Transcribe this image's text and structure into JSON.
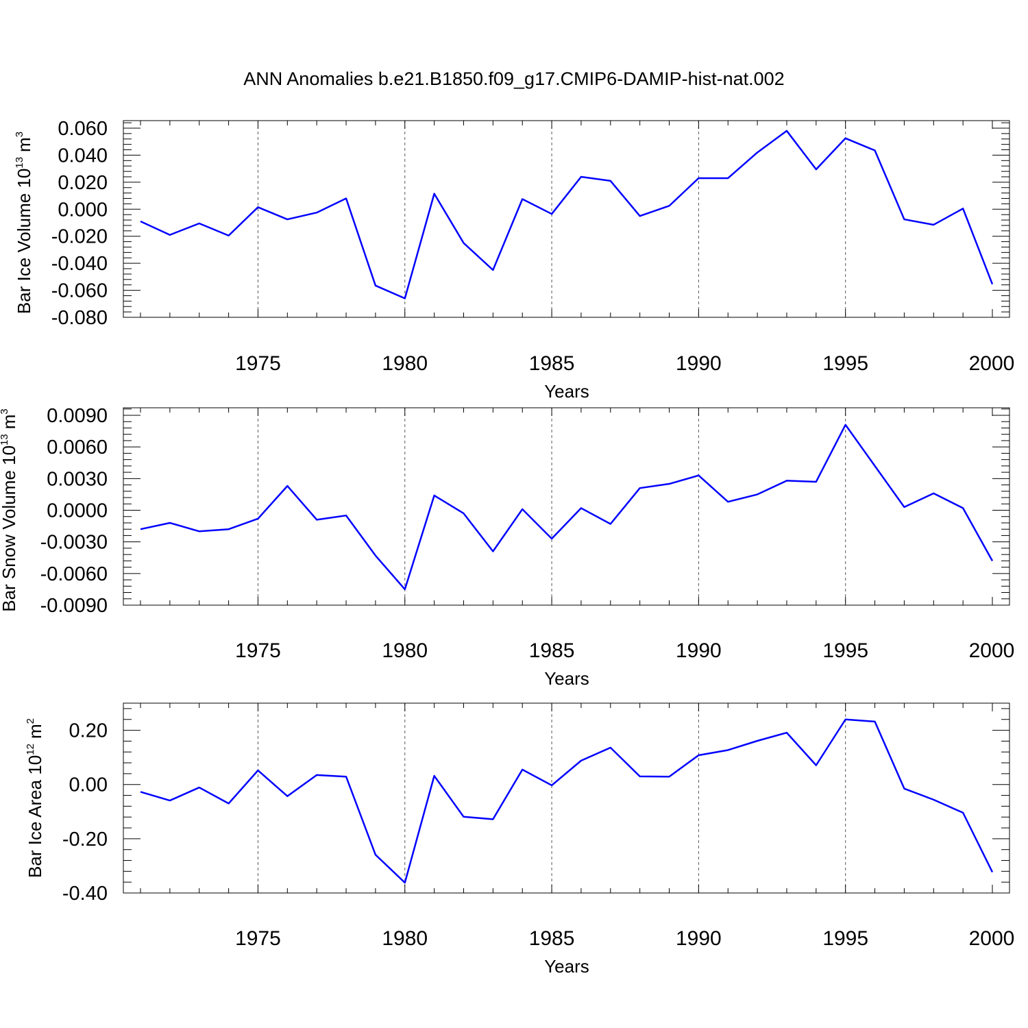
{
  "title": "ANN Anomalies b.e21.B1850.f09_g17.CMIP6-DAMIP-hist-nat.002",
  "colors": {
    "series": "#0000ff",
    "frame": "#000000",
    "grid": "#555555"
  },
  "chart_data": [
    {
      "type": "line",
      "ylabel_main": "Bar Ice Volume 10",
      "ylabel_exp": "13",
      "ylabel_unit": "m",
      "ylabel_unit_exp": "3",
      "xlabel": "Years",
      "xlim": [
        1971,
        2000
      ],
      "ylim": [
        -0.08,
        0.06
      ],
      "ytick_values": [
        0.06,
        0.04,
        0.02,
        0.0,
        -0.02,
        -0.04,
        -0.06,
        -0.08
      ],
      "ytick_labels": [
        "0.060",
        "0.040",
        "0.020",
        "0.000",
        "-0.020",
        "-0.040",
        "-0.060",
        "-0.080"
      ],
      "xtick_values": [
        1975,
        1980,
        1985,
        1990,
        1995,
        2000
      ],
      "xtick_labels": [
        "1975",
        "1980",
        "1985",
        "1990",
        "1995",
        "2000"
      ],
      "grid_x": [
        1975,
        1980,
        1985,
        1990,
        1995
      ],
      "x": [
        1971,
        1972,
        1973,
        1974,
        1975,
        1976,
        1977,
        1978,
        1979,
        1980,
        1981,
        1982,
        1983,
        1984,
        1985,
        1986,
        1987,
        1988,
        1989,
        1990,
        1991,
        1992,
        1993,
        1994,
        1995,
        1996,
        1997,
        1998,
        1999,
        2000
      ],
      "y": [
        -0.009,
        -0.019,
        -0.0105,
        -0.0195,
        0.0015,
        -0.0075,
        -0.0025,
        0.008,
        -0.0565,
        -0.066,
        0.0115,
        -0.025,
        -0.045,
        0.0075,
        -0.0035,
        0.024,
        0.021,
        -0.005,
        0.0025,
        0.023,
        0.023,
        0.042,
        0.058,
        0.0295,
        0.0525,
        0.0435,
        -0.0075,
        -0.0115,
        0.0005,
        -0.0555
      ]
    },
    {
      "type": "line",
      "ylabel_main": "Bar Snow Volume 10",
      "ylabel_exp": "13",
      "ylabel_unit": "m",
      "ylabel_unit_exp": "3",
      "xlabel": "Years",
      "xlim": [
        1971,
        2000
      ],
      "ylim": [
        -0.009,
        0.009
      ],
      "ytick_values": [
        0.009,
        0.006,
        0.003,
        0.0,
        -0.003,
        -0.006,
        -0.009
      ],
      "ytick_labels": [
        "0.0090",
        "0.0060",
        "0.0030",
        "0.0000",
        "-0.0030",
        "-0.0060",
        "-0.0090"
      ],
      "xtick_values": [
        1975,
        1980,
        1985,
        1990,
        1995,
        2000
      ],
      "xtick_labels": [
        "1975",
        "1980",
        "1985",
        "1990",
        "1995",
        "2000"
      ],
      "grid_x": [
        1975,
        1980,
        1985,
        1990,
        1995
      ],
      "x": [
        1971,
        1972,
        1973,
        1974,
        1975,
        1976,
        1977,
        1978,
        1979,
        1980,
        1981,
        1982,
        1983,
        1984,
        1985,
        1986,
        1987,
        1988,
        1989,
        1990,
        1991,
        1992,
        1993,
        1994,
        1995,
        1996,
        1997,
        1998,
        1999,
        2000
      ],
      "y": [
        -0.0018,
        -0.0012,
        -0.002,
        -0.0018,
        -0.0008,
        0.0023,
        -0.0009,
        -0.0005,
        -0.0043,
        -0.0075,
        0.0014,
        -0.0003,
        -0.0039,
        0.0001,
        -0.0027,
        0.0002,
        -0.0013,
        0.0021,
        0.0025,
        0.0033,
        0.0008,
        0.0015,
        0.0028,
        0.0027,
        0.0081,
        0.0042,
        0.0003,
        0.0016,
        0.0002,
        -0.0048
      ]
    },
    {
      "type": "line",
      "ylabel_main": "Bar Ice Area 10",
      "ylabel_exp": "12",
      "ylabel_unit": "m",
      "ylabel_unit_exp": "2",
      "xlabel": "Years",
      "xlim": [
        1971,
        2000
      ],
      "ylim": [
        -0.4,
        0.3
      ],
      "ytick_values": [
        0.2,
        0.0,
        -0.2,
        -0.4
      ],
      "ytick_labels": [
        "0.20",
        "0.00",
        "-0.20",
        "-0.40"
      ],
      "xtick_values": [
        1975,
        1980,
        1985,
        1990,
        1995,
        2000
      ],
      "xtick_labels": [
        "1975",
        "1980",
        "1985",
        "1990",
        "1995",
        "2000"
      ],
      "grid_x": [
        1975,
        1980,
        1985,
        1990,
        1995
      ],
      "x": [
        1971,
        1972,
        1973,
        1974,
        1975,
        1976,
        1977,
        1978,
        1979,
        1980,
        1981,
        1982,
        1983,
        1984,
        1985,
        1986,
        1987,
        1988,
        1989,
        1990,
        1991,
        1992,
        1993,
        1994,
        1995,
        1996,
        1997,
        1998,
        1999,
        2000
      ],
      "y": [
        -0.027,
        -0.059,
        -0.011,
        -0.07,
        0.052,
        -0.043,
        0.035,
        0.029,
        -0.259,
        -0.362,
        0.032,
        -0.119,
        -0.128,
        0.055,
        -0.003,
        0.088,
        0.136,
        0.03,
        0.029,
        0.108,
        0.127,
        0.161,
        0.191,
        0.071,
        0.24,
        0.232,
        -0.015,
        -0.056,
        -0.104,
        -0.323
      ]
    }
  ]
}
